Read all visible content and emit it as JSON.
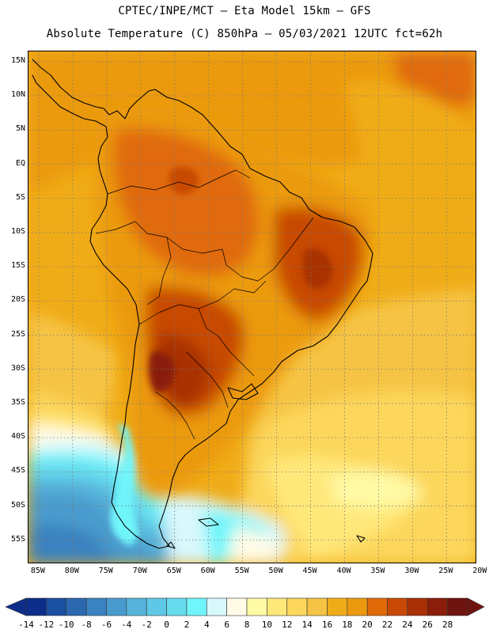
{
  "header": {
    "title_line1": "CPTEC/INPE/MCT –  Eta Model 15km – GFS",
    "title_line2": "Absolute Temperature (C) 850hPa – 05/03/2021 12UTC fct=62h"
  },
  "map": {
    "lat_labels": [
      "15N",
      "10N",
      "5N",
      "EQ",
      "5S",
      "10S",
      "15S",
      "20S",
      "25S",
      "30S",
      "35S",
      "40S",
      "45S",
      "50S",
      "55S"
    ],
    "lon_labels": [
      "85W",
      "80W",
      "75W",
      "70W",
      "65W",
      "60W",
      "55W",
      "50W",
      "45W",
      "40W",
      "35W",
      "30W",
      "25W",
      "20W"
    ],
    "lat_range": [
      16.5,
      -58.5
    ],
    "lon_range": [
      -86.5,
      -20.5
    ],
    "grid": true
  },
  "colorbar": {
    "labels": [
      "-14",
      "-12",
      "-10",
      "-8",
      "-6",
      "-4",
      "-2",
      "0",
      "2",
      "4",
      "6",
      "8",
      "10",
      "12",
      "14",
      "16",
      "18",
      "20",
      "22",
      "24",
      "26",
      "28"
    ],
    "colors": [
      "#0c2e8a",
      "#1b4fa0",
      "#2b68b0",
      "#3a82c0",
      "#4a9bcd",
      "#56b3da",
      "#5fc8e6",
      "#66dcee",
      "#70f5fa",
      "#d8f8fc",
      "#fffbe6",
      "#fffaa6",
      "#ffe87a",
      "#fcd75c",
      "#f6c444",
      "#f0ac18",
      "#eb9a10",
      "#e06a08",
      "#c84906",
      "#a83004",
      "#8a1e0a",
      "#6e1410"
    ]
  }
}
